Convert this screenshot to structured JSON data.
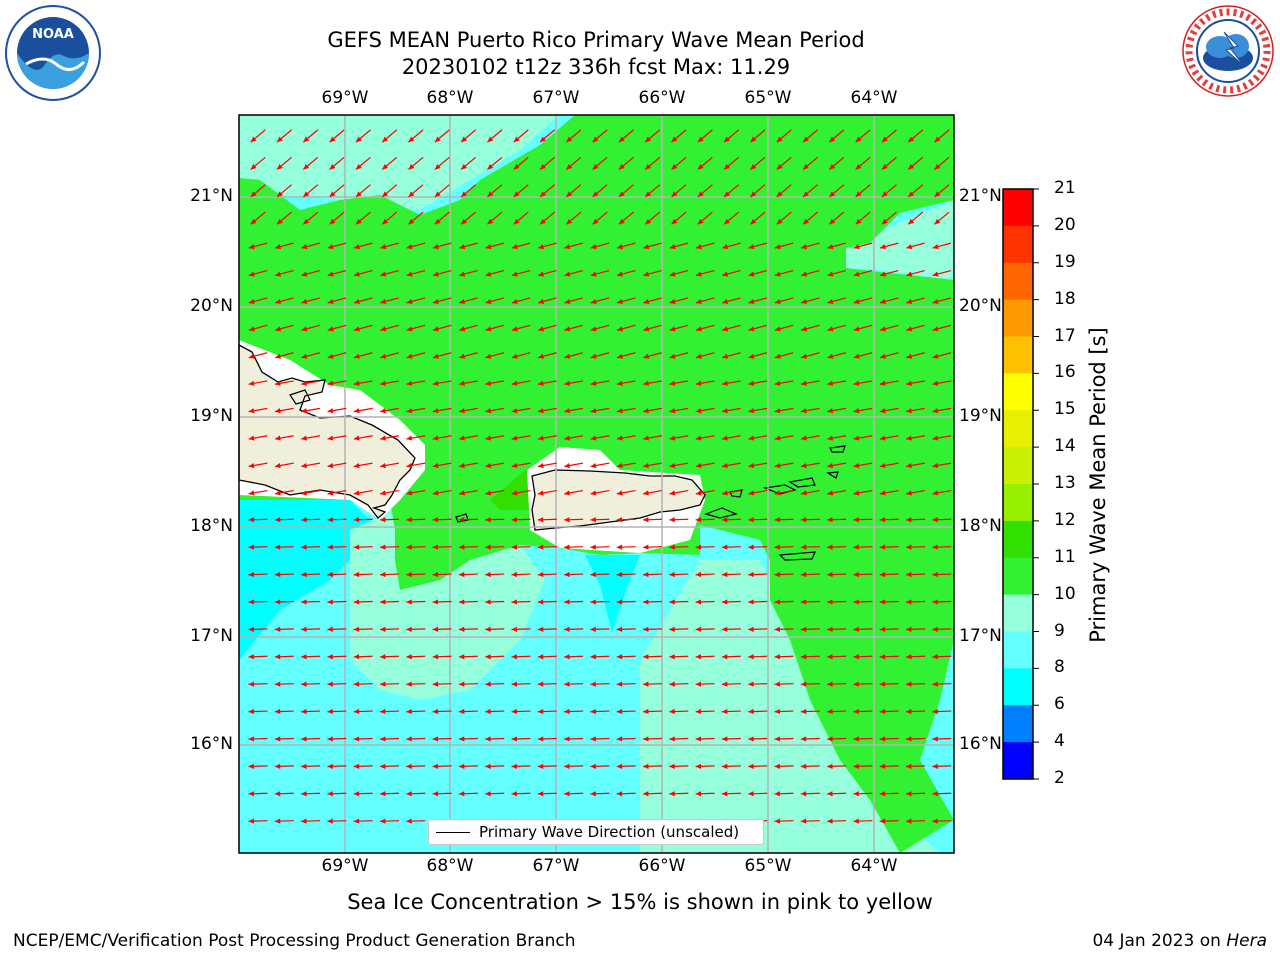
{
  "title_line1": "GEFS MEAN Puerto Rico Primary Wave Mean Period",
  "title_line2": "20230102 t12z 336h fcst   Max: 11.29",
  "logos": {
    "noaa_text": "NOAA",
    "nws_text": "NATIONAL WEATHER SERVICE"
  },
  "axes": {
    "lon_labels": [
      "69°W",
      "68°W",
      "67°W",
      "66°W",
      "65°W",
      "64°W"
    ],
    "lat_labels": [
      "21°N",
      "20°N",
      "19°N",
      "18°N",
      "17°N",
      "16°N"
    ]
  },
  "legend_label": "Primary Wave Direction (unscaled)",
  "colorbar": {
    "title": "Primary Wave Mean Period [s]",
    "ticks": [
      "21",
      "20",
      "19",
      "18",
      "17",
      "16",
      "15",
      "14",
      "13",
      "12",
      "11",
      "10",
      "9",
      "8",
      "6",
      "4",
      "2"
    ],
    "colors": [
      "#ff0000",
      "#ff3300",
      "#ff6600",
      "#ff9900",
      "#ffc000",
      "#ffff00",
      "#e6f000",
      "#c8f000",
      "#96f000",
      "#32e000",
      "#32f032",
      "#96ffdc",
      "#64ffff",
      "#00ffff",
      "#0080ff",
      "#0000ff"
    ]
  },
  "colors": {
    "land": "#efefdc",
    "period_10_11": "#32f032",
    "period_9_10": "#96ffdc",
    "period_8_9": "#64ffff",
    "period_6_8": "#00ffff",
    "arrows": "#ff0000"
  },
  "caption": "Sea Ice Concentration > 15% is shown in pink to yellow",
  "footer_left": "NCEP/EMC/Verification Post Processing Product Generation Branch",
  "footer_date": "04 Jan 2023 on",
  "footer_host": "Hera"
}
